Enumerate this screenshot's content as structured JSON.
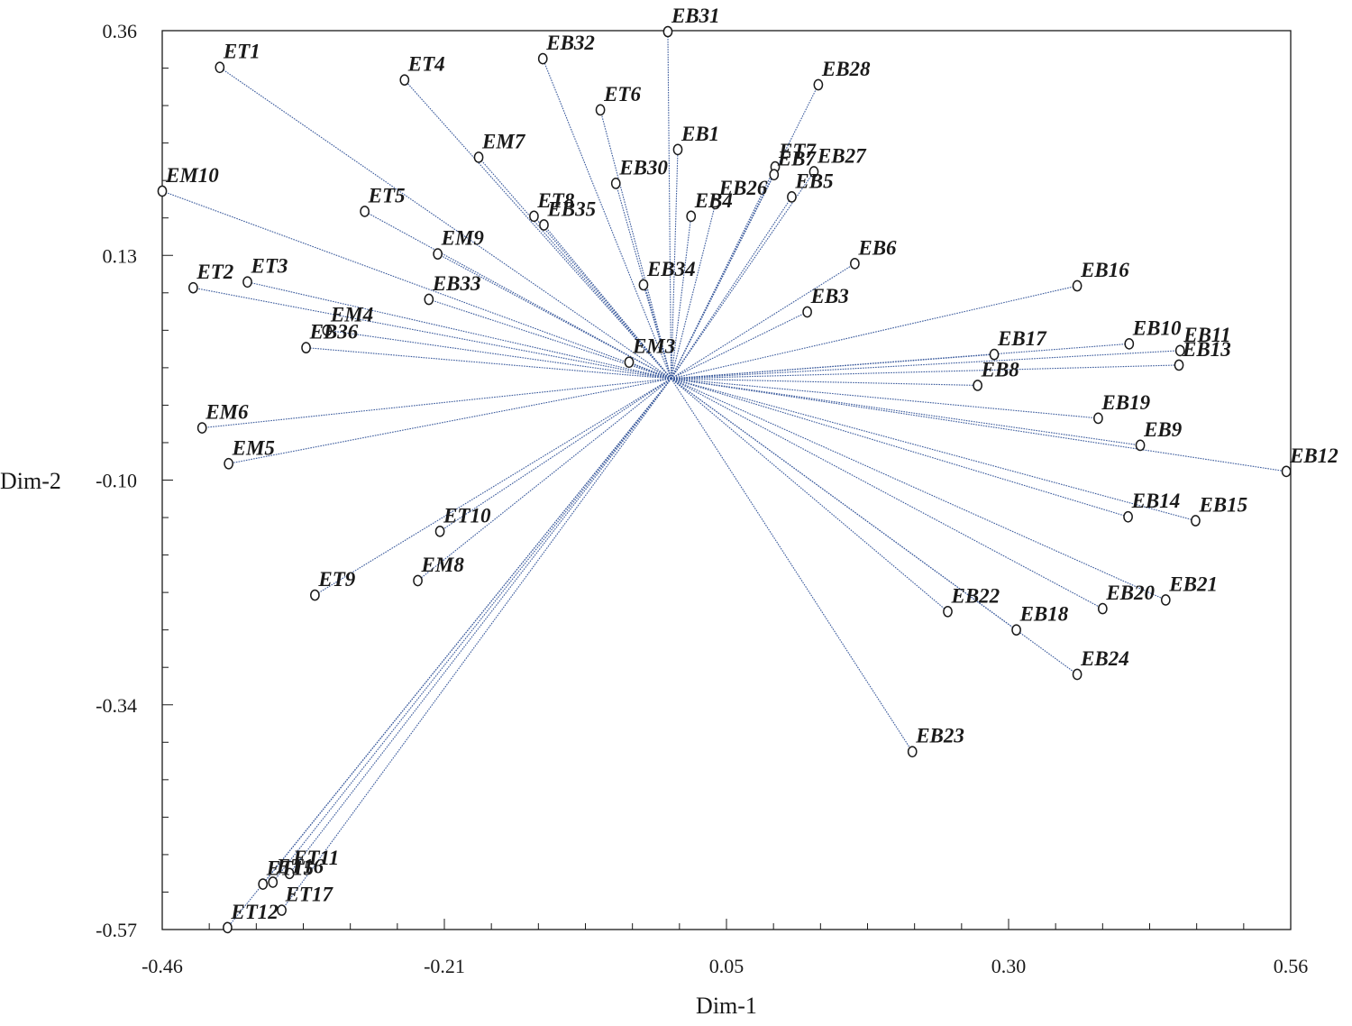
{
  "chart_data": {
    "type": "scatter",
    "title": "",
    "xlabel": "Dim-1",
    "ylabel": "Dim-2",
    "xlim": [
      -0.46,
      0.56
    ],
    "ylim": [
      -0.57,
      0.36
    ],
    "xticks": [
      "-0.46",
      "-0.21",
      "0.05",
      "0.30",
      "0.56"
    ],
    "yticks": [
      "0.36",
      "0.13",
      "-0.10",
      "-0.34",
      "-0.57"
    ],
    "grid": false,
    "origin": [
      0.0,
      0.0
    ],
    "points": [
      {
        "label": "EB31",
        "x": -0.003,
        "y": 0.359
      },
      {
        "label": "ET1",
        "x": -0.408,
        "y": 0.322
      },
      {
        "label": "EB32",
        "x": -0.116,
        "y": 0.331
      },
      {
        "label": "ET4",
        "x": -0.241,
        "y": 0.309
      },
      {
        "label": "EB28",
        "x": 0.133,
        "y": 0.304
      },
      {
        "label": "ET6",
        "x": -0.064,
        "y": 0.278
      },
      {
        "label": "EB1",
        "x": 0.006,
        "y": 0.237
      },
      {
        "label": "EM7",
        "x": -0.174,
        "y": 0.229
      },
      {
        "label": "ET7",
        "x": 0.094,
        "y": 0.219
      },
      {
        "label": "EB7",
        "x": 0.093,
        "y": 0.211
      },
      {
        "label": "EB27",
        "x": 0.129,
        "y": 0.214
      },
      {
        "label": "EB30",
        "x": -0.05,
        "y": 0.202
      },
      {
        "label": "EM10",
        "x": -0.46,
        "y": 0.194
      },
      {
        "label": "EB26",
        "x": 0.04,
        "y": 0.181
      },
      {
        "label": "EB5",
        "x": 0.109,
        "y": 0.188
      },
      {
        "label": "EB4",
        "x": 0.018,
        "y": 0.168
      },
      {
        "label": "ET5",
        "x": -0.277,
        "y": 0.173
      },
      {
        "label": "ET8",
        "x": -0.124,
        "y": 0.168
      },
      {
        "label": "EB35",
        "x": -0.115,
        "y": 0.159
      },
      {
        "label": "EM9",
        "x": -0.211,
        "y": 0.129
      },
      {
        "label": "EB6",
        "x": 0.166,
        "y": 0.119
      },
      {
        "label": "EB16",
        "x": 0.367,
        "y": 0.096
      },
      {
        "label": "ET3",
        "x": -0.383,
        "y": 0.1
      },
      {
        "label": "ET2",
        "x": -0.432,
        "y": 0.094
      },
      {
        "label": "EB34",
        "x": -0.025,
        "y": 0.097
      },
      {
        "label": "EB33",
        "x": -0.219,
        "y": 0.082
      },
      {
        "label": "EB3",
        "x": 0.123,
        "y": 0.069
      },
      {
        "label": "EM4",
        "x": -0.311,
        "y": 0.05
      },
      {
        "label": "EB10",
        "x": 0.414,
        "y": 0.036
      },
      {
        "label": "EB36",
        "x": -0.33,
        "y": 0.032
      },
      {
        "label": "EB11",
        "x": 0.46,
        "y": 0.029
      },
      {
        "label": "EB17",
        "x": 0.292,
        "y": 0.025
      },
      {
        "label": "EM3",
        "x": -0.038,
        "y": 0.017
      },
      {
        "label": "EB13",
        "x": 0.459,
        "y": 0.014
      },
      {
        "label": "EB8",
        "x": 0.277,
        "y": -0.007
      },
      {
        "label": "EB19",
        "x": 0.386,
        "y": -0.041
      },
      {
        "label": "EM6",
        "x": -0.424,
        "y": -0.051
      },
      {
        "label": "EB9",
        "x": 0.424,
        "y": -0.069
      },
      {
        "label": "EM5",
        "x": -0.4,
        "y": -0.088
      },
      {
        "label": "EB12",
        "x": 0.556,
        "y": -0.096
      },
      {
        "label": "EB14",
        "x": 0.413,
        "y": -0.143
      },
      {
        "label": "EB15",
        "x": 0.474,
        "y": -0.147
      },
      {
        "label": "ET10",
        "x": -0.209,
        "y": -0.158
      },
      {
        "label": "EM8",
        "x": -0.229,
        "y": -0.209
      },
      {
        "label": "ET9",
        "x": -0.322,
        "y": -0.224
      },
      {
        "label": "EB21",
        "x": 0.447,
        "y": -0.229
      },
      {
        "label": "EB20",
        "x": 0.39,
        "y": -0.238
      },
      {
        "label": "EB22",
        "x": 0.25,
        "y": -0.241
      },
      {
        "label": "EB18",
        "x": 0.312,
        "y": -0.26
      },
      {
        "label": "EB24",
        "x": 0.367,
        "y": -0.306
      },
      {
        "label": "EB23",
        "x": 0.218,
        "y": -0.386
      },
      {
        "label": "ET11",
        "x": -0.345,
        "y": -0.512
      },
      {
        "label": "ET16",
        "x": -0.36,
        "y": -0.521
      },
      {
        "label": "ET15",
        "x": -0.369,
        "y": -0.523
      },
      {
        "label": "ET17",
        "x": -0.352,
        "y": -0.55
      },
      {
        "label": "ET12",
        "x": -0.401,
        "y": -0.568
      }
    ]
  }
}
